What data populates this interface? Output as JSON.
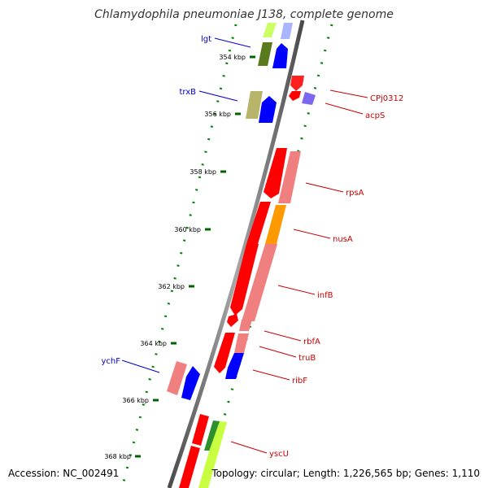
{
  "title": "Chlamydophila pneumoniae J138, complete genome",
  "footer": {
    "accession": "Accession: NC_002491",
    "summary": "Topology: circular; Length: 1,226,565 bp; Genes: 1,110"
  },
  "colors": {
    "backbone": "#808080",
    "dots": "#008000",
    "tick": "#006400",
    "label_left": "#0000cc",
    "label_right": "#cc0000"
  },
  "ruler": [
    "354 kbp",
    "356 kbp",
    "358 kbp",
    "360 kbp",
    "362 kbp",
    "364 kbp",
    "366 kbp",
    "368 kbp"
  ],
  "genes_left": [
    {
      "name": "lgt",
      "color": "#0000cc"
    },
    {
      "name": "trxB",
      "color": "#0000cc"
    },
    {
      "name": "ychF",
      "color": "#0000cc"
    }
  ],
  "genes_right": [
    {
      "name": "CPj0312",
      "color": "#cc0000"
    },
    {
      "name": "acpS",
      "color": "#cc0000"
    },
    {
      "name": "rpsA",
      "color": "#cc0000"
    },
    {
      "name": "nusA",
      "color": "#cc0000"
    },
    {
      "name": "infB",
      "color": "#cc0000"
    },
    {
      "name": "rbfA",
      "color": "#cc0000"
    },
    {
      "name": "truB",
      "color": "#cc0000"
    },
    {
      "name": "ribF",
      "color": "#cc0000"
    },
    {
      "name": "yscU",
      "color": "#cc0000"
    }
  ]
}
